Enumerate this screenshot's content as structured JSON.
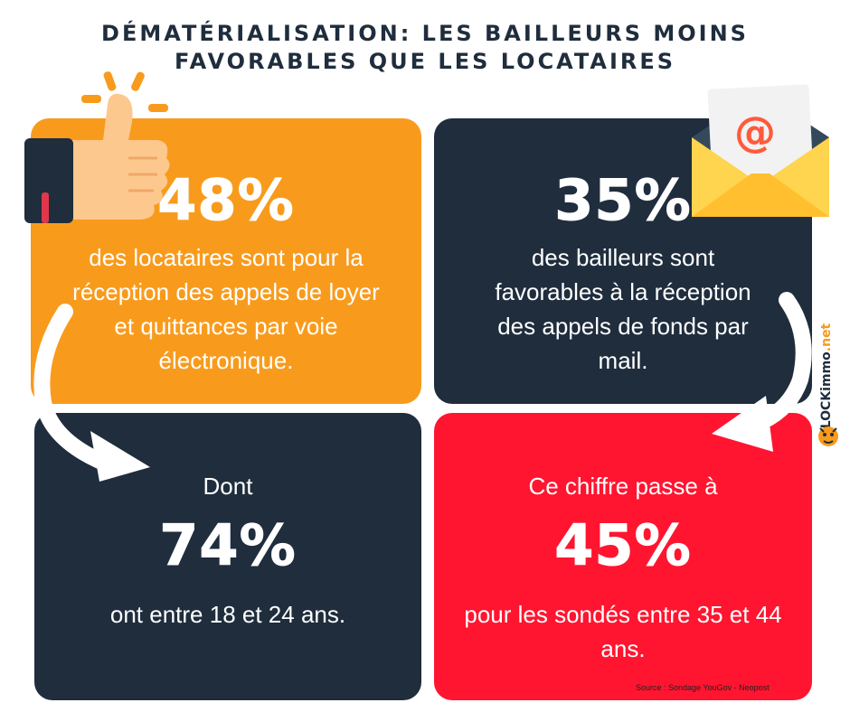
{
  "title": {
    "line1": "DÉMATÉRIALISATION: LES BAILLEURS MOINS",
    "line2": "FAVORABLES QUE LES LOCATAIRES"
  },
  "cards": [
    {
      "stat": "48%",
      "text": [
        "des locataires sont pour la",
        "réception des appels de loyer",
        "et quittances par voie",
        "électronique."
      ],
      "color": "#f89b1c"
    },
    {
      "stat": "35%",
      "text": [
        "des bailleurs sont",
        "favorables à la réception",
        "des appels de fonds par",
        "mail."
      ],
      "color": "#1f2d3d"
    },
    {
      "pre": "Dont",
      "stat": "74%",
      "text": [
        "ont entre 18 et 24 ans."
      ],
      "color": "#1f2d3d"
    },
    {
      "pre": "Ce chiffre passe à",
      "stat": "45%",
      "text": [
        "pour les sondés entre 35 et 44",
        "ans."
      ],
      "color": "#ff1530"
    }
  ],
  "source": "Source : Sondage YouGov - Neopost",
  "brand": {
    "name": "LOCKimmo",
    "tld": ".net"
  },
  "icons": [
    "thumbs-up-icon",
    "email-envelope-icon",
    "curved-arrow-icon",
    "tiger-mascot-icon"
  ]
}
